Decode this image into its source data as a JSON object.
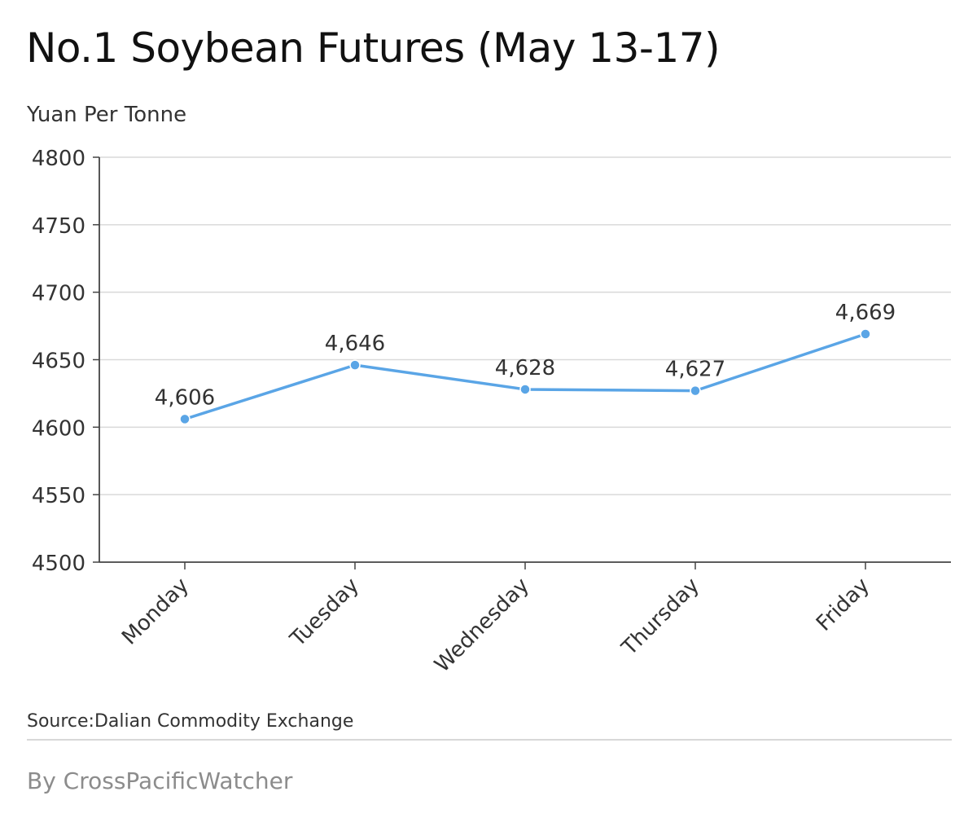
{
  "title": "No.1 Soybean Futures (May 13-17)",
  "unit_label": "Yuan Per Tonne",
  "source": "Source:Dalian Commodity Exchange",
  "byline": "By CrossPacificWatcher",
  "chart_data": {
    "type": "line",
    "title": "No.1 Soybean Futures (May 13-17)",
    "ylabel": "Yuan Per Tonne",
    "xlabel": "",
    "categories": [
      "Monday",
      "Tuesday",
      "Wednesday",
      "Thursday",
      "Friday"
    ],
    "series": [
      {
        "values": [
          4606,
          4646,
          4628,
          4627,
          4669
        ]
      }
    ],
    "data_labels": [
      "4,606",
      "4,646",
      "4,628",
      "4,627",
      "4,669"
    ],
    "ylim": [
      4500,
      4800
    ],
    "yticks": [
      4500,
      4550,
      4600,
      4650,
      4700,
      4750,
      4800
    ],
    "grid": true,
    "line_color": "#5aa5e6",
    "legend": "none"
  }
}
